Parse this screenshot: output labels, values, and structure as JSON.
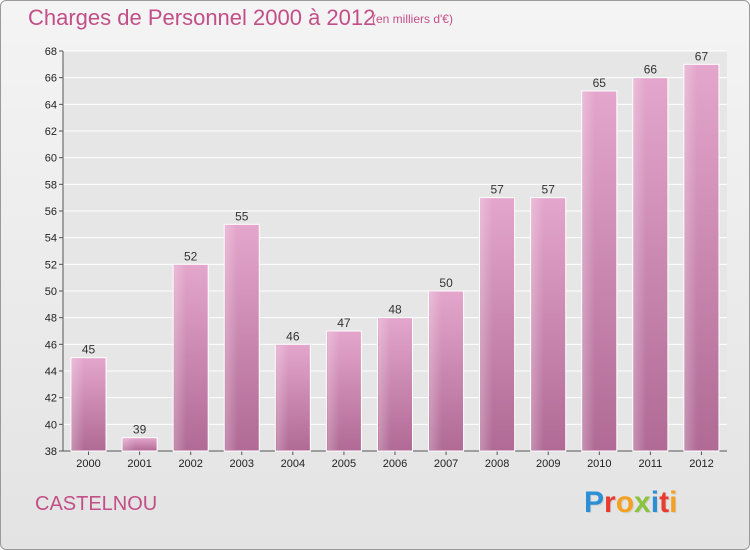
{
  "header": {
    "title": "Charges de Personnel 2000 à 2012",
    "subtitle": "(en milliers d'€)"
  },
  "footer": {
    "commune": "CASTELNOU",
    "logo_letters": [
      "P",
      "r",
      "o",
      "x",
      "i",
      "t",
      "i"
    ],
    "logo_colors": [
      "#2b8fd6",
      "#e83a2f",
      "#f4a020",
      "#8ac43f",
      "#2b8fd6",
      "#e83a2f",
      "#f4a020"
    ]
  },
  "chart_data": {
    "type": "bar",
    "title": "Charges de Personnel 2000 à 2012",
    "subtitle": "(en milliers d'€)",
    "categories": [
      "2000",
      "2001",
      "2002",
      "2003",
      "2004",
      "2005",
      "2006",
      "2007",
      "2008",
      "2009",
      "2010",
      "2011",
      "2012"
    ],
    "values": [
      45,
      39,
      52,
      55,
      46,
      47,
      48,
      50,
      57,
      57,
      65,
      66,
      67
    ],
    "ylim": [
      38,
      68
    ],
    "yticks": [
      38,
      40,
      42,
      44,
      46,
      48,
      50,
      52,
      54,
      56,
      58,
      60,
      62,
      64,
      66,
      68
    ],
    "grid": true,
    "bar_color": "#d98fbd",
    "legend": "none"
  }
}
